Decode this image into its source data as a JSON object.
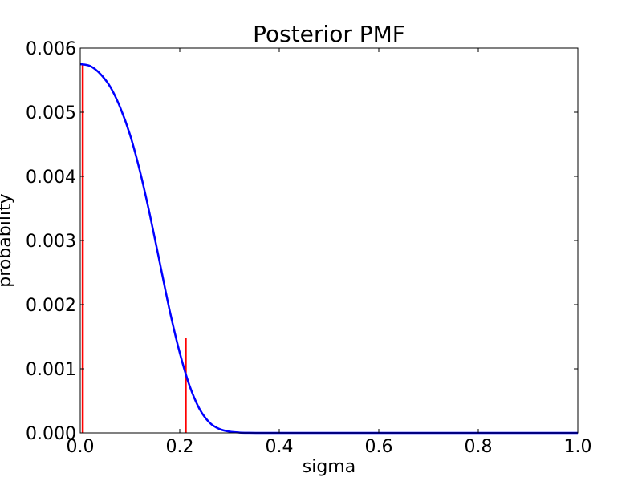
{
  "chart_data": {
    "type": "line",
    "title": "Posterior PMF",
    "xlabel": "sigma",
    "ylabel": "probability",
    "xlim": [
      0.0,
      1.0
    ],
    "ylim": [
      0.0,
      0.006
    ],
    "xticks": [
      0.0,
      0.2,
      0.4,
      0.6,
      0.8,
      1.0
    ],
    "xtick_labels": [
      "0.0",
      "0.2",
      "0.4",
      "0.6",
      "0.8",
      "1.0"
    ],
    "yticks": [
      0.0,
      0.001,
      0.002,
      0.003,
      0.004,
      0.005,
      0.006
    ],
    "ytick_labels": [
      "0.000",
      "0.001",
      "0.002",
      "0.003",
      "0.004",
      "0.005",
      "0.006"
    ],
    "grid": false,
    "series": [
      {
        "color": "#0000ff",
        "x": [
          0.0,
          0.02,
          0.04,
          0.06,
          0.08,
          0.1,
          0.12,
          0.14,
          0.16,
          0.18,
          0.2,
          0.22,
          0.24,
          0.26,
          0.28,
          0.3,
          0.32,
          0.34,
          0.36,
          0.4,
          0.5,
          0.6,
          0.7,
          0.8,
          0.9,
          1.0
        ],
        "y": [
          0.00575,
          0.00572,
          0.0056,
          0.0054,
          0.00508,
          0.00465,
          0.00408,
          0.0034,
          0.00265,
          0.0019,
          0.00125,
          0.00073,
          0.00037,
          0.00016,
          6e-05,
          2e-05,
          5e-06,
          1e-06,
          0.0,
          0.0,
          0.0,
          0.0,
          0.0,
          0.0,
          0.0,
          0.0
        ]
      }
    ],
    "vlines": [
      {
        "x": 0.005,
        "y": 0.00574,
        "color": "#ff0000"
      },
      {
        "x": 0.212,
        "y": 0.00148,
        "color": "#ff0000"
      }
    ]
  }
}
